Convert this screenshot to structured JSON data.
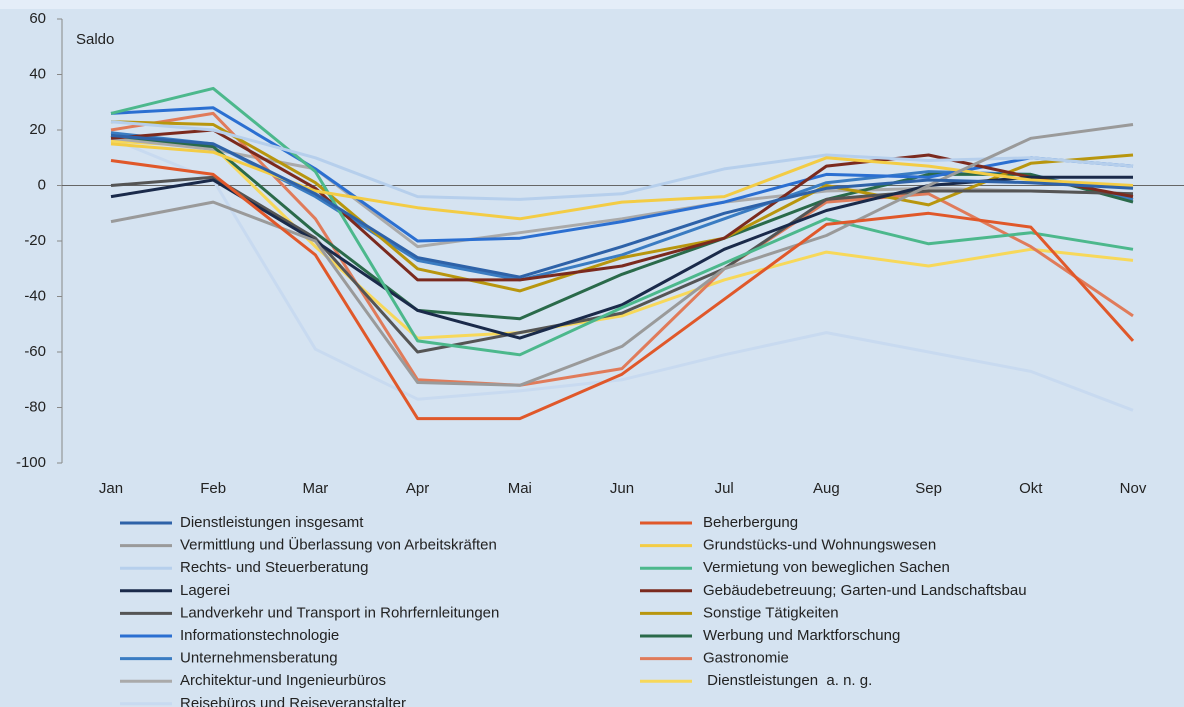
{
  "chart_data": {
    "type": "line",
    "ylabel": "Saldo",
    "categories": [
      "Jan",
      "Feb",
      "Mar",
      "Apr",
      "Mai",
      "Jun",
      "Jul",
      "Aug",
      "Sep",
      "Okt",
      "Nov"
    ],
    "ylim": [
      -100,
      60
    ],
    "yticks": [
      -100,
      -80,
      -60,
      -40,
      -20,
      0,
      20,
      40,
      60
    ],
    "legend": "bottom",
    "series": [
      {
        "name": "Dienstleistungen insgesamt",
        "color": "#2e62a8",
        "values": [
          18,
          15,
          -3,
          -26,
          -33,
          -22,
          -10,
          -1,
          2,
          1,
          -1
        ]
      },
      {
        "name": "Beherbergung",
        "color": "#e0582a",
        "values": [
          9,
          4,
          -25,
          -84,
          -84,
          -68,
          -41,
          -14,
          -10,
          -15,
          -56
        ]
      },
      {
        "name": "Vermittlung und Überlassung von Arbeitskräften",
        "color": "#9a9a9a",
        "values": [
          -13,
          -6,
          -20,
          -71,
          -72,
          -58,
          -30,
          -18,
          0,
          17,
          22
        ]
      },
      {
        "name": "Grundstücks-und Wohnungswesen",
        "color": "#f3cc45",
        "values": [
          15,
          12,
          -2,
          -8,
          -12,
          -6,
          -4,
          10,
          7,
          2,
          0
        ]
      },
      {
        "name": "Rechts- und Steuerberatung",
        "color": "#b6cfec",
        "values": [
          23,
          20,
          10,
          -4,
          -5,
          -3,
          6,
          11,
          9,
          10,
          7
        ]
      },
      {
        "name": "Vermietung von beweglichen Sachen",
        "color": "#4cb88c",
        "values": [
          26,
          35,
          5,
          -56,
          -61,
          -44,
          -28,
          -12,
          -21,
          -17,
          -23
        ]
      },
      {
        "name": "Lagerei",
        "color": "#1a2a4a",
        "values": [
          -4,
          2,
          -20,
          -45,
          -55,
          -43,
          -23,
          -9,
          0,
          3,
          3
        ]
      },
      {
        "name": "Gebäudebetreuung; Garten-und Landschaftsbau",
        "color": "#7b2a1e",
        "values": [
          17,
          20,
          -1,
          -34,
          -34,
          -29,
          -19,
          7,
          11,
          3,
          -4
        ]
      },
      {
        "name": "Landverkehr und Transport in Rohrfernleitungen",
        "color": "#555555",
        "values": [
          0,
          3,
          -19,
          -60,
          -53,
          -46,
          -30,
          -5,
          -2,
          -2,
          -3
        ]
      },
      {
        "name": "Sonstige Tätigkeiten",
        "color": "#b8960e",
        "values": [
          23,
          22,
          1,
          -30,
          -38,
          -26,
          -19,
          0,
          -7,
          8,
          11
        ]
      },
      {
        "name": "Informationstechnologie",
        "color": "#2b6fd1",
        "values": [
          26,
          28,
          6,
          -20,
          -19,
          -13,
          -6,
          4,
          3,
          10,
          7
        ]
      },
      {
        "name": "Werbung und Marktforschung",
        "color": "#2a6a4a",
        "values": [
          18,
          14,
          -17,
          -45,
          -48,
          -32,
          -19,
          -5,
          4,
          4,
          -6
        ]
      },
      {
        "name": "Unternehmensberatung",
        "color": "#3a7cc2",
        "values": [
          19,
          15,
          -4,
          -27,
          -34,
          -25,
          -12,
          1,
          5,
          4,
          -5
        ]
      },
      {
        "name": "Gastronomie",
        "color": "#e07b5a",
        "values": [
          20,
          26,
          -12,
          -70,
          -72,
          -66,
          -30,
          -6,
          -3,
          -22,
          -47
        ]
      },
      {
        "name": "Architektur-und Ingenieurbüros",
        "color": "#aaaaaa",
        "values": [
          17,
          13,
          6,
          -22,
          -17,
          -12,
          -6,
          -2,
          -1,
          -2,
          -3
        ]
      },
      {
        "name": " Dienstleistungen  a. n. g.",
        "color": "#f7d85a",
        "values": [
          16,
          14,
          -22,
          -55,
          -53,
          -47,
          -34,
          -24,
          -29,
          -23,
          -27
        ]
      },
      {
        "name": "Reisebüros und Reiseveranstalter",
        "color": "#c8daf0",
        "values": [
          17,
          2,
          -59,
          -77,
          -74,
          -70,
          -61,
          -53,
          -60,
          -67,
          -81
        ]
      }
    ]
  }
}
